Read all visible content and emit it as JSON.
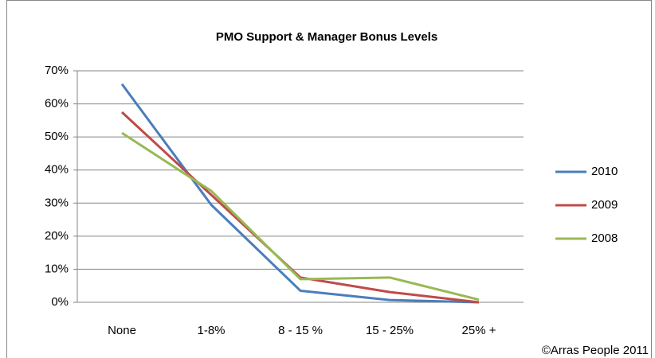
{
  "chart_data": {
    "type": "line",
    "title": "PMO Support & Manager Bonus Levels",
    "categories": [
      "None",
      "1-8%",
      "8 - 15 %",
      "15 - 25%",
      "25% +"
    ],
    "series": [
      {
        "name": "2010",
        "color": "#4a7ebb",
        "values": [
          66,
          29.5,
          3.5,
          0.7,
          0
        ]
      },
      {
        "name": "2009",
        "color": "#be4b48",
        "values": [
          57.5,
          32.5,
          7.5,
          3.1,
          0
        ]
      },
      {
        "name": "2008",
        "color": "#98b954",
        "values": [
          51.2,
          33.7,
          7,
          7.5,
          0.8
        ]
      }
    ],
    "ylim": [
      0,
      70
    ],
    "yticks": [
      {
        "value": 0,
        "label": "0%"
      },
      {
        "value": 10,
        "label": "10%"
      },
      {
        "value": 20,
        "label": "20%"
      },
      {
        "value": 30,
        "label": "30%"
      },
      {
        "value": 40,
        "label": "40%"
      },
      {
        "value": 50,
        "label": "50%"
      },
      {
        "value": 60,
        "label": "60%"
      },
      {
        "value": 70,
        "label": "70%"
      }
    ],
    "grid": true,
    "legend": "right",
    "annotations": [
      "©Arras People 2011"
    ]
  }
}
